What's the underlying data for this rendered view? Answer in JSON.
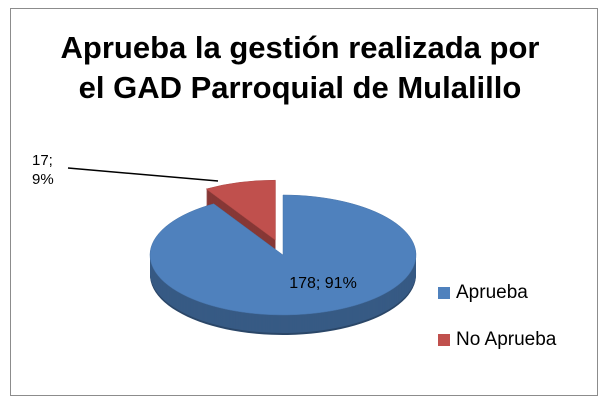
{
  "chart_data": {
    "type": "pie",
    "title": "Aprueba la gestión realizada por el GAD Parroquial de Mulalillo",
    "categories": [
      "Aprueba",
      "No Aprueba"
    ],
    "values": [
      178,
      17
    ],
    "value_labels": [
      "178; 91%",
      "17; 9%"
    ],
    "colors": [
      "#4f81bd",
      "#c0504d"
    ],
    "legend": "right"
  }
}
